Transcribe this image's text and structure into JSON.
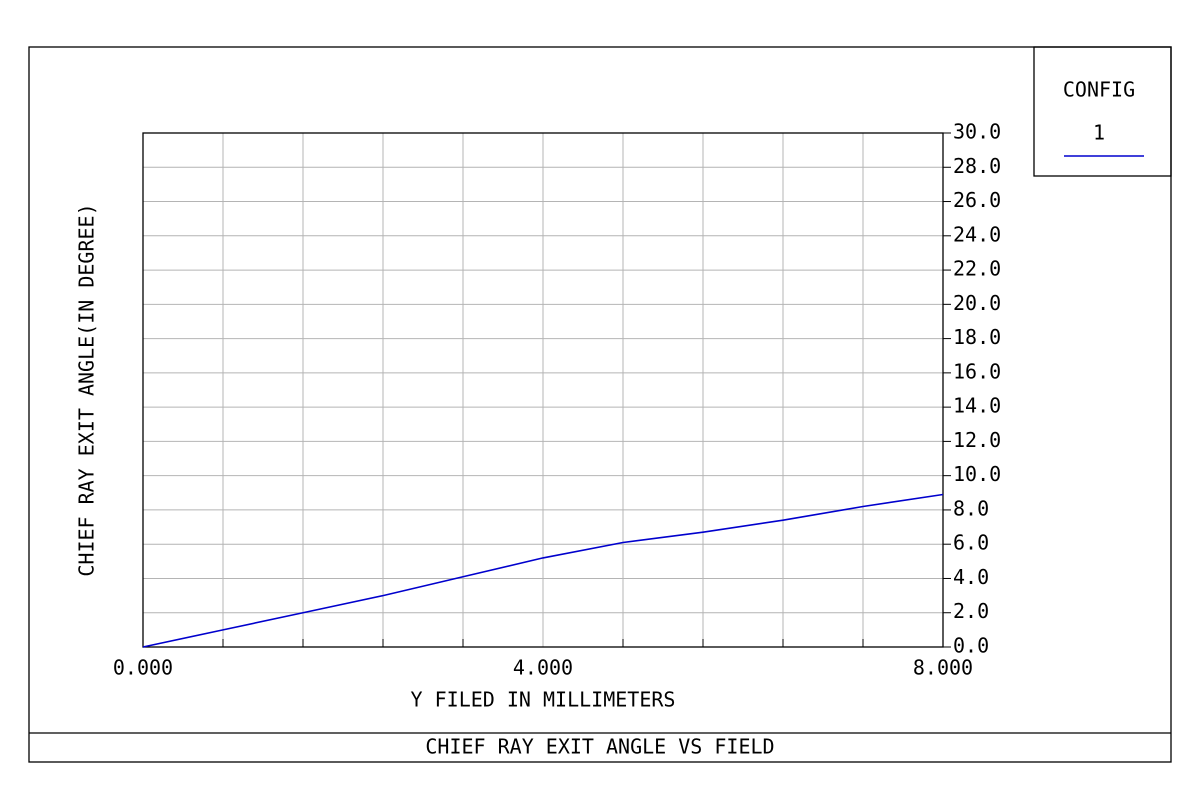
{
  "chart_data": {
    "type": "line",
    "title": "CHIEF RAY EXIT ANGLE VS FIELD",
    "xlabel": "Y FILED IN MILLIMETERS",
    "ylabel": "CHIEF RAY EXIT ANGLE(IN DEGREE)",
    "legend_title": "CONFIG",
    "legend": "upper right",
    "x": [
      0,
      0.8,
      1.6,
      2.4,
      3.2,
      4.0,
      4.8,
      5.6,
      6.4,
      7.2,
      8.0
    ],
    "series": [
      {
        "name": "1",
        "color": "#0000cd",
        "values": [
          0,
          1.0,
          2.0,
          3.0,
          4.1,
          5.2,
          6.1,
          6.7,
          7.4,
          8.2,
          8.9
        ]
      }
    ],
    "xlim": [
      0,
      8
    ],
    "ylim": [
      0,
      30
    ],
    "xticks": [
      {
        "value": 0,
        "label": "0.000"
      },
      {
        "value": 4,
        "label": "4.000"
      },
      {
        "value": 8,
        "label": "8.000"
      }
    ],
    "xgrid": [
      0.8,
      1.6,
      2.4,
      3.2,
      4.8,
      5.6,
      6.4,
      7.2
    ],
    "yticks": [
      {
        "value": 0,
        "label": "0.0"
      },
      {
        "value": 2,
        "label": "2.0"
      },
      {
        "value": 4,
        "label": "4.0"
      },
      {
        "value": 6,
        "label": "6.0"
      },
      {
        "value": 8,
        "label": "8.0"
      },
      {
        "value": 10,
        "label": "10.0"
      },
      {
        "value": 12,
        "label": "12.0"
      },
      {
        "value": 14,
        "label": "14.0"
      },
      {
        "value": 16,
        "label": "16.0"
      },
      {
        "value": 18,
        "label": "18.0"
      },
      {
        "value": 20,
        "label": "20.0"
      },
      {
        "value": 22,
        "label": "22.0"
      },
      {
        "value": 24,
        "label": "24.0"
      },
      {
        "value": 26,
        "label": "26.0"
      },
      {
        "value": 28,
        "label": "28.0"
      },
      {
        "value": 30,
        "label": "30.0"
      }
    ],
    "grid": true
  }
}
